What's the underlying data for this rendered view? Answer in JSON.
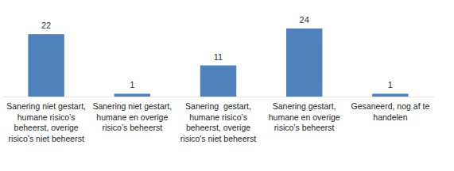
{
  "chart_data": {
    "type": "bar",
    "categories": [
      "Sanering niet gestart, humane risico’s beheerst, overige risico's niet beheerst",
      "Sanering niet gestart, humane en overige risico’s beheerst",
      "Sanering  gestart, humane risico’s beheerst, overige risico's niet beheerst",
      "Sanering gestart, humane en overige risico’s beheerst",
      "Gesaneerd, nog af te handelen"
    ],
    "values": [
      22,
      1,
      11,
      24,
      1
    ],
    "color": "#4f81bd",
    "ylim": [
      0,
      24
    ],
    "grid": false,
    "data_labels": true,
    "tick_labels": "x"
  }
}
